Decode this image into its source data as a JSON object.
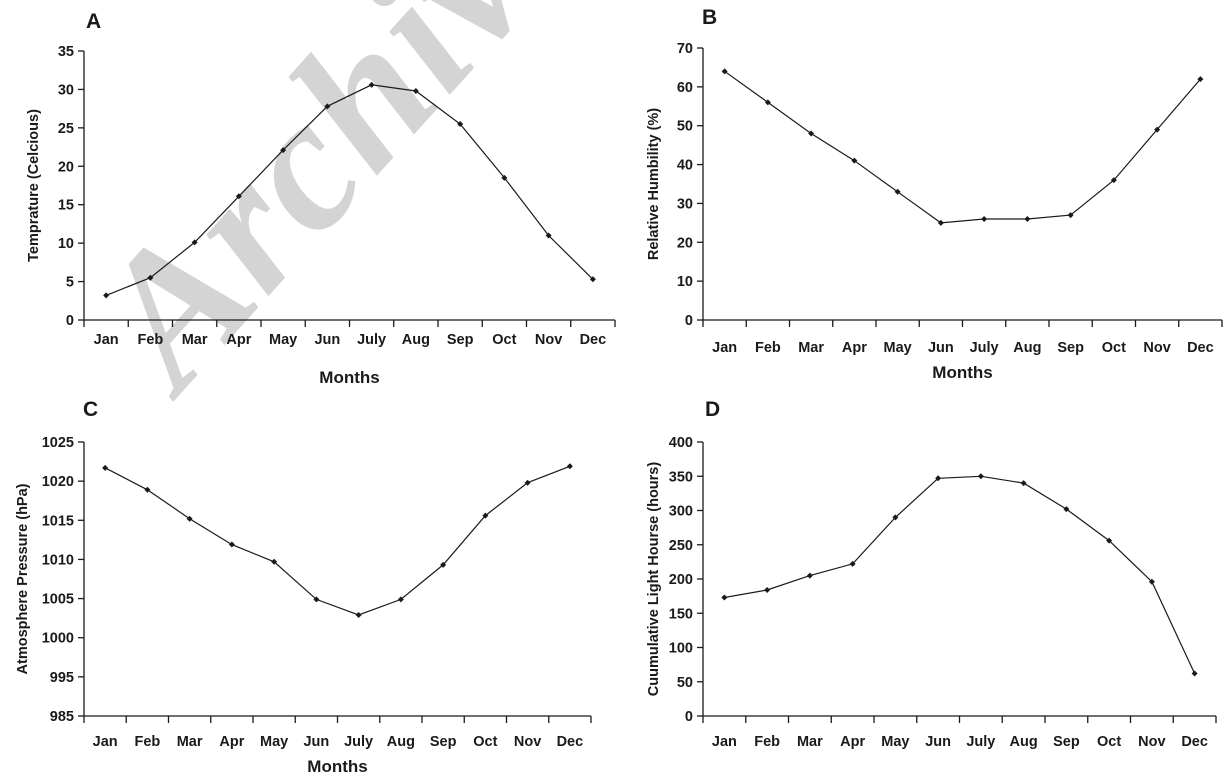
{
  "watermark": "Archive",
  "month_labels": [
    "Jan",
    "Feb",
    "Mar",
    "Apr",
    "May",
    "Jun",
    "July",
    "Aug",
    "Sep",
    "Oct",
    "Nov",
    "Dec"
  ],
  "chart_data": [
    {
      "panel": "A",
      "type": "line",
      "ylabel": "Temprature (Celcious)",
      "xlabel": "Months",
      "ylim": [
        0,
        35
      ],
      "yticks": [
        0,
        5,
        10,
        15,
        20,
        25,
        30,
        35
      ],
      "ytick_labels": [
        "0",
        "5",
        "10",
        "15",
        "20",
        "25",
        "30",
        "35"
      ],
      "x": [
        "Jan",
        "Feb",
        "Mar",
        "Apr",
        "May",
        "Jun",
        "July",
        "Aug",
        "Sep",
        "Oct",
        "Nov",
        "Dec"
      ],
      "values": [
        3.2,
        5.5,
        10.1,
        16.1,
        22.1,
        27.8,
        30.6,
        29.8,
        25.5,
        18.5,
        11.0,
        5.3
      ],
      "grid": false
    },
    {
      "panel": "B",
      "type": "line",
      "ylabel": "Relative Humbility (%)",
      "xlabel": "Months",
      "ylim": [
        0,
        70
      ],
      "yticks": [
        0,
        10,
        20,
        30,
        40,
        50,
        60,
        70
      ],
      "ytick_labels": [
        "0",
        "10",
        "20",
        "30",
        "40",
        "50",
        "60",
        "70"
      ],
      "x": [
        "Jan",
        "Feb",
        "Mar",
        "Apr",
        "May",
        "Jun",
        "July",
        "Aug",
        "Sep",
        "Oct",
        "Nov",
        "Dec"
      ],
      "values": [
        64,
        56,
        48,
        41,
        33,
        25,
        26,
        26,
        27,
        36,
        49,
        62
      ],
      "grid": false
    },
    {
      "panel": "C",
      "type": "line",
      "ylabel": "Atmosphere Pressure (hPa)",
      "xlabel": "Months",
      "ylim": [
        985,
        1025
      ],
      "yticks": [
        985,
        995,
        1000,
        1005,
        1010,
        1015,
        1020,
        1025
      ],
      "ytick_labels": [
        "985",
        "995",
        "1000",
        "1005",
        "1010",
        "1015",
        "1020",
        "1025"
      ],
      "x": [
        "Jan",
        "Feb",
        "Mar",
        "Apr",
        "May",
        "Jun",
        "July",
        "Aug",
        "Sep",
        "Oct",
        "Nov",
        "Dec"
      ],
      "values": [
        1021.7,
        1018.9,
        1015.2,
        1011.9,
        1009.7,
        1004.9,
        1002.9,
        1004.9,
        1009.3,
        1015.6,
        1019.8,
        1021.9
      ],
      "grid": false
    },
    {
      "panel": "D",
      "type": "line",
      "ylabel": "Cuumulative Light Hourse (hours)",
      "xlabel": "",
      "ylim": [
        0,
        400
      ],
      "yticks": [
        0,
        50,
        100,
        150,
        200,
        250,
        300,
        350,
        400
      ],
      "ytick_labels": [
        "0",
        "50",
        "100",
        "150",
        "200",
        "250",
        "300",
        "350",
        "400"
      ],
      "x": [
        "Jan",
        "Feb",
        "Mar",
        "Apr",
        "May",
        "Jun",
        "July",
        "Aug",
        "Sep",
        "Oct",
        "Nov",
        "Dec"
      ],
      "values": [
        173,
        184,
        205,
        222,
        290,
        347,
        350,
        340,
        302,
        256,
        196,
        62
      ],
      "grid": false
    }
  ]
}
